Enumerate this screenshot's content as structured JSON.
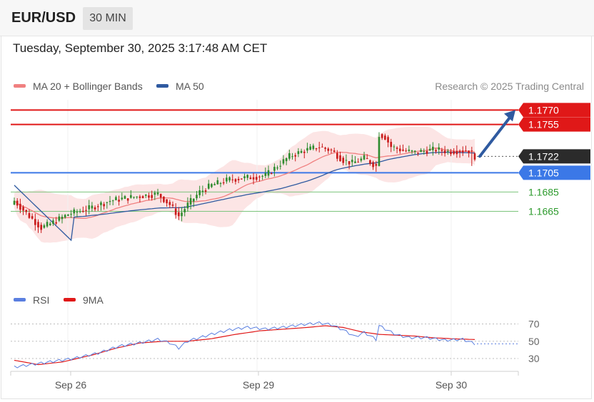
{
  "header": {
    "symbol": "EUR/USD",
    "timeframe": "30 MIN"
  },
  "timestamp": "Tuesday, September 30, 2025 3:17:48 AM CET",
  "legend": {
    "ma20": {
      "label": "MA 20 + Bollinger Bands",
      "color": "#f08080"
    },
    "ma50": {
      "label": "MA 50",
      "color": "#2f5aa0"
    },
    "credit": "Research © 2025 Trading Central"
  },
  "rsi_legend": {
    "rsi": {
      "label": "RSI",
      "color": "#5a7fe0"
    },
    "ma9": {
      "label": "9MA",
      "color": "#e01818"
    }
  },
  "colors": {
    "up": "#2e8b2e",
    "down": "#c91a1a",
    "band": "#fbdcdc",
    "resistance": "#e01818",
    "support_blue": "#3b78e7",
    "support_green": "#7cc47c",
    "current": "#2b2b2b",
    "arrow": "#2f5aa0"
  },
  "chart_data": [
    {
      "type": "candlestick",
      "x_ticks": [
        "Sep 26",
        "Sep 29",
        "Sep 30"
      ],
      "ylim": [
        1.159,
        1.1788
      ],
      "levels": [
        {
          "label": "1.1770",
          "value": 1.177,
          "role": "resistance"
        },
        {
          "label": "1.1755",
          "value": 1.1755,
          "role": "resistance"
        },
        {
          "label": "1.1722",
          "value": 1.1722,
          "role": "current"
        },
        {
          "label": "1.1705",
          "value": 1.1705,
          "role": "support"
        },
        {
          "label": "1.1685",
          "value": 1.1685,
          "role": "support"
        },
        {
          "label": "1.1665",
          "value": 1.1665,
          "role": "support"
        }
      ],
      "target": 1.177,
      "anchors_close": [
        [
          0,
          1.1676
        ],
        [
          5,
          1.166
        ],
        [
          9,
          1.1648
        ],
        [
          12,
          1.1652
        ],
        [
          18,
          1.1662
        ],
        [
          25,
          1.1668
        ],
        [
          32,
          1.1676
        ],
        [
          40,
          1.168
        ],
        [
          48,
          1.1683
        ],
        [
          52,
          1.1672
        ],
        [
          55,
          1.166
        ],
        [
          58,
          1.1672
        ],
        [
          62,
          1.1685
        ],
        [
          66,
          1.1692
        ],
        [
          72,
          1.1698
        ],
        [
          78,
          1.17
        ],
        [
          84,
          1.1702
        ],
        [
          88,
          1.1712
        ],
        [
          92,
          1.1722
        ],
        [
          97,
          1.1728
        ],
        [
          102,
          1.1732
        ],
        [
          106,
          1.1728
        ],
        [
          110,
          1.1718
        ],
        [
          113,
          1.1715
        ],
        [
          117,
          1.172
        ],
        [
          121,
          1.1712
        ],
        [
          122,
          1.1745
        ],
        [
          124,
          1.1742
        ],
        [
          126,
          1.1732
        ],
        [
          130,
          1.1728
        ],
        [
          134,
          1.1726
        ],
        [
          138,
          1.1728
        ],
        [
          141,
          1.1729
        ],
        [
          145,
          1.1727
        ],
        [
          149,
          1.1728
        ],
        [
          152,
          1.1728
        ],
        [
          154,
          1.1722
        ]
      ]
    },
    {
      "type": "line",
      "name": "RSI",
      "y_ticks": [
        70,
        50,
        30
      ],
      "ylim": [
        16,
        82
      ],
      "series": [
        {
          "name": "RSI",
          "points": [
            [
              0,
              20
            ],
            [
              6,
              23
            ],
            [
              12,
              26
            ],
            [
              20,
              30
            ],
            [
              28,
              36
            ],
            [
              35,
              44
            ],
            [
              42,
              48
            ],
            [
              48,
              52
            ],
            [
              52,
              48
            ],
            [
              55,
              42
            ],
            [
              58,
              50
            ],
            [
              62,
              54
            ],
            [
              66,
              58
            ],
            [
              72,
              63
            ],
            [
              78,
              66
            ],
            [
              84,
              64
            ],
            [
              90,
              66
            ],
            [
              96,
              69
            ],
            [
              102,
              71
            ],
            [
              106,
              69
            ],
            [
              110,
              63
            ],
            [
              114,
              55
            ],
            [
              117,
              60
            ],
            [
              121,
              52
            ],
            [
              122,
              68
            ],
            [
              124,
              64
            ],
            [
              128,
              57
            ],
            [
              132,
              54
            ],
            [
              138,
              54
            ],
            [
              144,
              51
            ],
            [
              150,
              52
            ],
            [
              154,
              47
            ]
          ]
        },
        {
          "name": "9MA",
          "points": [
            [
              0,
              28
            ],
            [
              8,
              23
            ],
            [
              16,
              26
            ],
            [
              26,
              34
            ],
            [
              34,
              42
            ],
            [
              42,
              48
            ],
            [
              50,
              50
            ],
            [
              58,
              50
            ],
            [
              66,
              53
            ],
            [
              74,
              58
            ],
            [
              82,
              62
            ],
            [
              90,
              64
            ],
            [
              98,
              66
            ],
            [
              104,
              68
            ],
            [
              110,
              66
            ],
            [
              116,
              61
            ],
            [
              122,
              58
            ],
            [
              128,
              57
            ],
            [
              134,
              56
            ],
            [
              140,
              54
            ],
            [
              146,
              53
            ],
            [
              154,
              52
            ]
          ]
        }
      ]
    }
  ]
}
